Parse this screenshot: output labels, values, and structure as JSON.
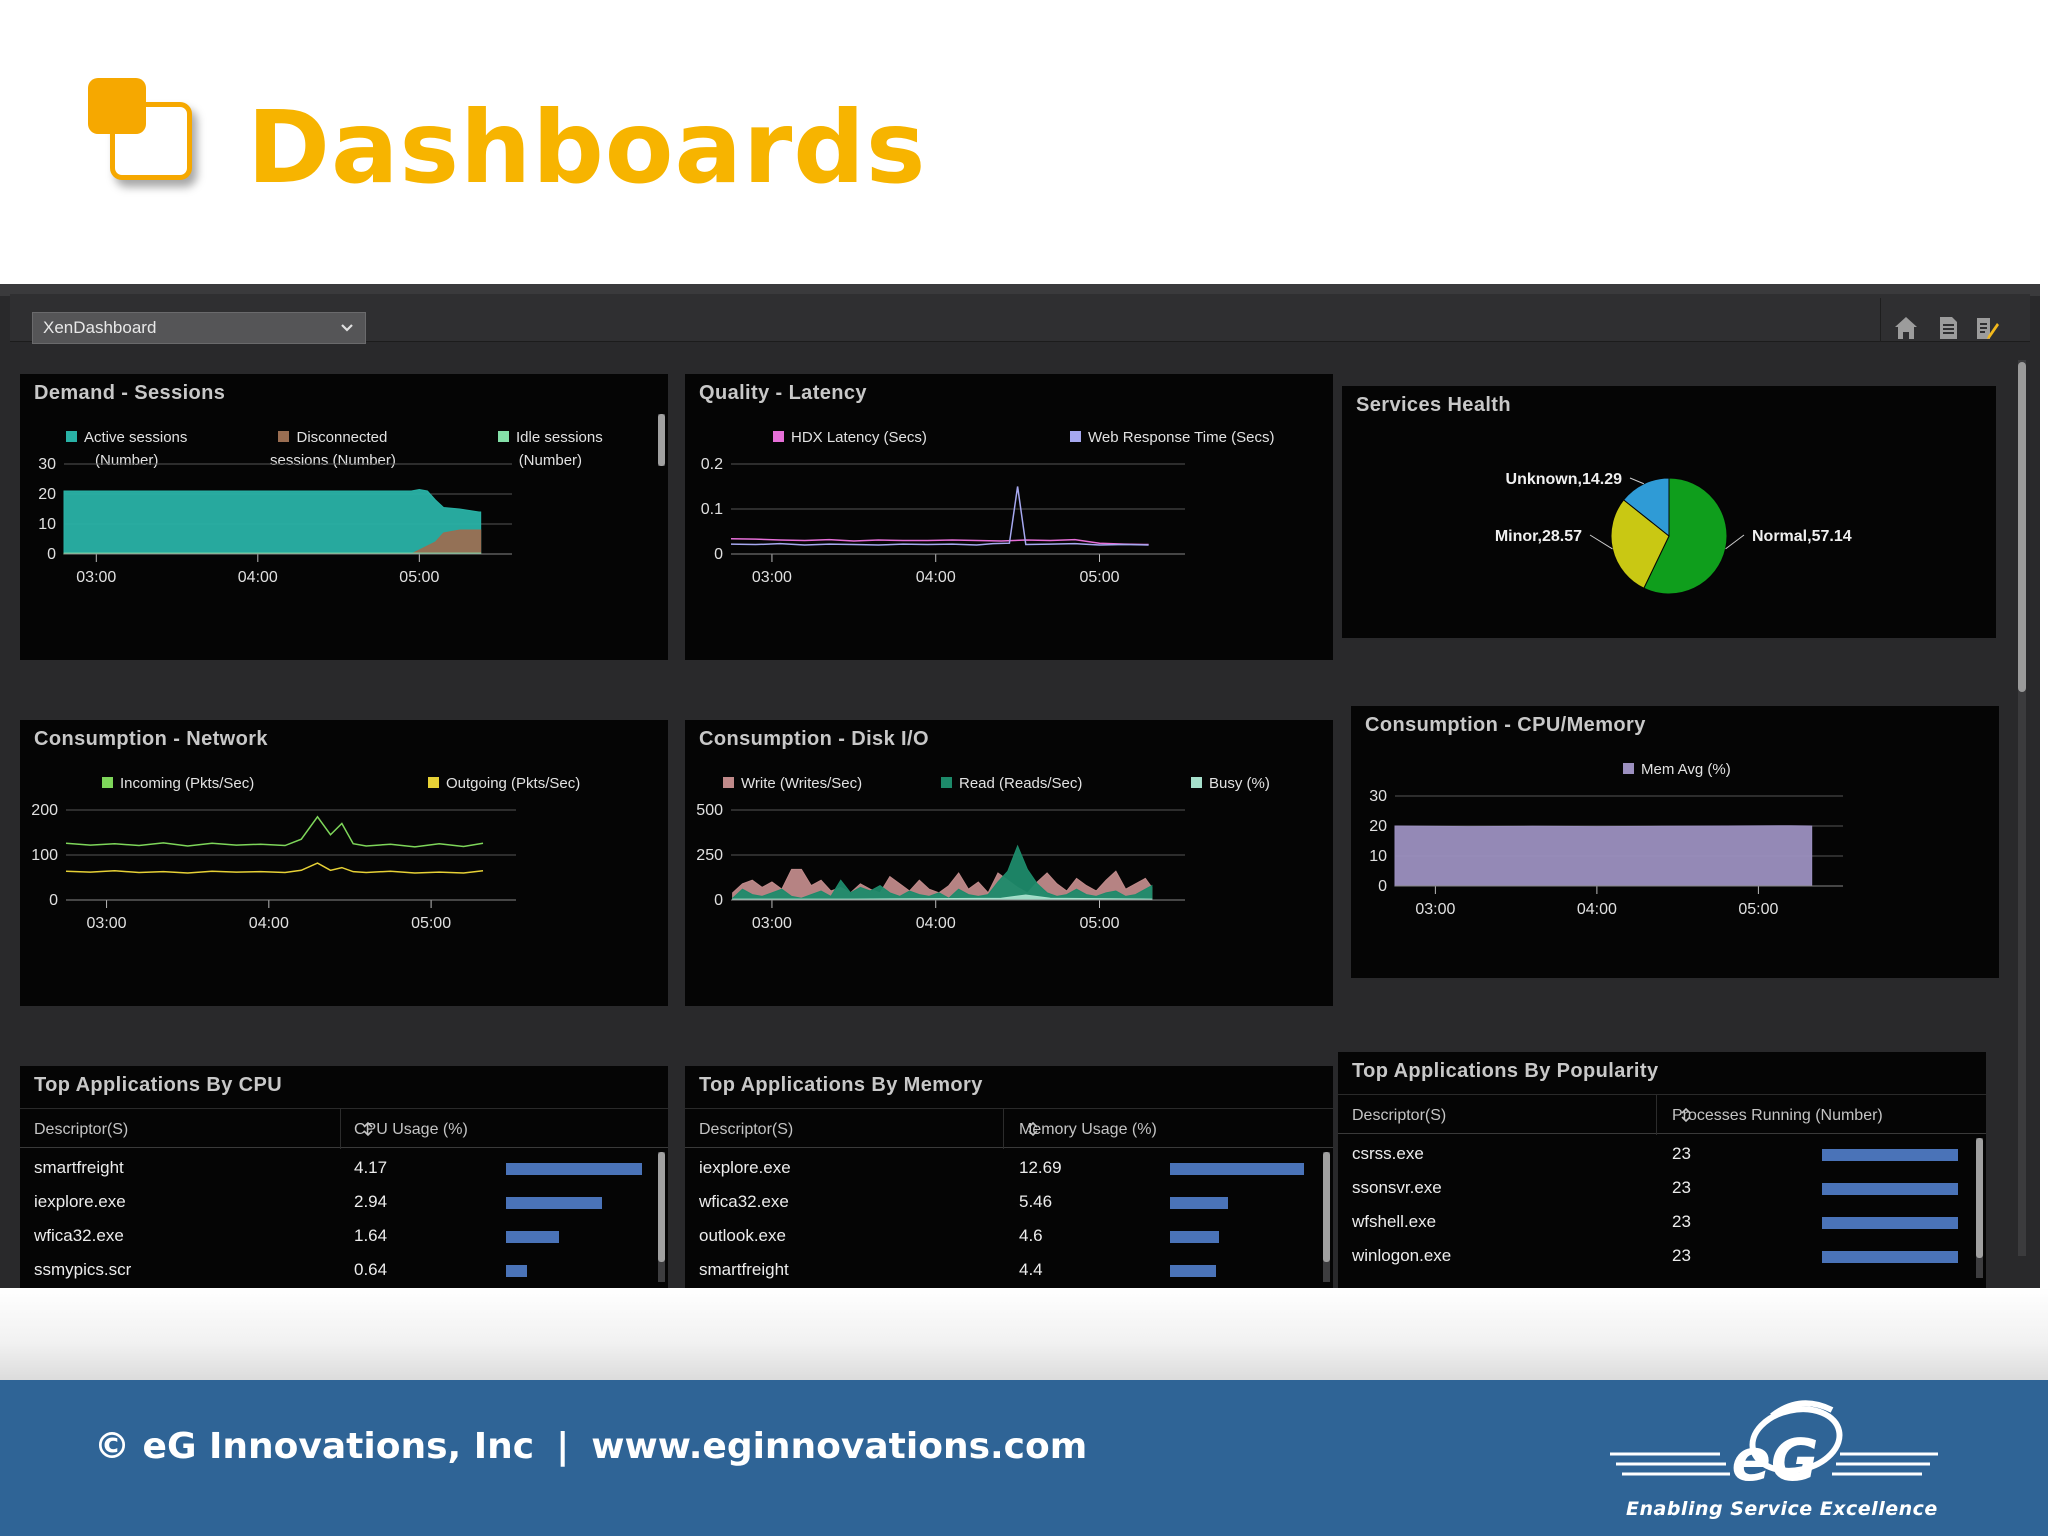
{
  "slide": {
    "title": "Dashboards",
    "footer_copyright": "© eG Innovations, Inc",
    "footer_separator": "|",
    "footer_url": "www.eginnovations.com",
    "logo_tagline": "Enabling Service Excellence",
    "logo_mark": "eG",
    "accent_color": "#f7b400",
    "footer_color": "#2f6496"
  },
  "toolbar": {
    "dashboard_select_value": "XenDashboard",
    "icons": [
      "home-icon",
      "document-icon",
      "edit-report-icon"
    ]
  },
  "panels": {
    "demand_sessions": {
      "title": "Demand - Sessions",
      "legend": [
        {
          "label": "Active sessions",
          "sub": "(Number)",
          "color": "#29b2a6"
        },
        {
          "label": "Disconnected",
          "sub": "sessions (Number)",
          "color": "#9a6e52"
        },
        {
          "label": "Idle sessions",
          "sub": "(Number)",
          "color": "#84e0a8"
        }
      ]
    },
    "quality_latency": {
      "title": "Quality - Latency",
      "legend": [
        {
          "label": "HDX Latency (Secs)",
          "color": "#e66fd8"
        },
        {
          "label": "Web Response Time (Secs)",
          "color": "#a6a8f0"
        }
      ]
    },
    "services_health": {
      "title": "Services Health"
    },
    "consumption_network": {
      "title": "Consumption - Network",
      "legend": [
        {
          "label": "Incoming (Pkts/Sec)",
          "color": "#7ed65a"
        },
        {
          "label": "Outgoing (Pkts/Sec)",
          "color": "#e7d136"
        }
      ]
    },
    "consumption_disk": {
      "title": "Consumption - Disk I/O",
      "legend": [
        {
          "label": "Write (Writes/Sec)",
          "color": "#c08a8a"
        },
        {
          "label": "Read (Reads/Sec)",
          "color": "#1d8a6a"
        },
        {
          "label": "Busy (%)",
          "color": "#a6e0cc"
        }
      ]
    },
    "consumption_cpu_mem": {
      "title": "Consumption - CPU/Memory",
      "legend": [
        {
          "label": "Mem Avg (%)",
          "color": "#9c90c0"
        }
      ]
    },
    "top_cpu": {
      "title": "Top Applications By CPU",
      "col1": "Descriptor(S)",
      "col2": "CPU Usage (%)",
      "rows": [
        {
          "name": "smartfreight",
          "value": "4.17",
          "fraction": 1.0
        },
        {
          "name": "iexplore.exe",
          "value": "2.94",
          "fraction": 0.705
        },
        {
          "name": "wfica32.exe",
          "value": "1.64",
          "fraction": 0.393
        },
        {
          "name": "ssmypics.scr",
          "value": "0.64",
          "fraction": 0.153
        }
      ]
    },
    "top_memory": {
      "title": "Top Applications By Memory",
      "col1": "Descriptor(S)",
      "col2": "Memory Usage (%)",
      "rows": [
        {
          "name": "iexplore.exe",
          "value": "12.69",
          "fraction": 1.0
        },
        {
          "name": "wfica32.exe",
          "value": "5.46",
          "fraction": 0.43
        },
        {
          "name": "outlook.exe",
          "value": "4.6",
          "fraction": 0.362
        },
        {
          "name": "smartfreight",
          "value": "4.4",
          "fraction": 0.347
        }
      ]
    },
    "top_popularity": {
      "title": "Top Applications By Popularity",
      "col1": "Descriptor(S)",
      "col2": "Processes Running (Number)",
      "rows": [
        {
          "name": "csrss.exe",
          "value": "23",
          "fraction": 1.0
        },
        {
          "name": "ssonsvr.exe",
          "value": "23",
          "fraction": 1.0
        },
        {
          "name": "wfshell.exe",
          "value": "23",
          "fraction": 1.0
        },
        {
          "name": "winlogon.exe",
          "value": "23",
          "fraction": 1.0
        }
      ]
    }
  },
  "chart_data": [
    {
      "id": "demand_sessions",
      "type": "area",
      "title": "Demand - Sessions",
      "x_ticks": [
        "03:00",
        "04:00",
        "05:00"
      ],
      "y_ticks": [
        "0",
        "10",
        "20",
        "30"
      ],
      "ylim": [
        0,
        30
      ],
      "x_range_hours": [
        2.75,
        5.4
      ],
      "series": [
        {
          "name": "Active sessions (Number)",
          "color": "#29b2a6",
          "x": [
            2.75,
            4.3,
            4.9,
            4.95,
            5.0,
            5.05,
            5.1,
            5.2,
            5.32,
            5.33
          ],
          "y": [
            21,
            21,
            21,
            21.5,
            21,
            18,
            15.5,
            15,
            14,
            14
          ]
        },
        {
          "name": "Disconnected sessions (Number)",
          "color": "#9a6e52",
          "x": [
            2.75,
            4.3,
            4.9,
            5.05,
            5.1,
            5.2,
            5.32,
            5.33
          ],
          "y": [
            0,
            0,
            0,
            4,
            7,
            8,
            8,
            8
          ]
        },
        {
          "name": "Idle sessions (Number)",
          "color": "#84e0a8",
          "x": [
            2.75,
            5.33
          ],
          "y": [
            0.3,
            0.3
          ]
        }
      ]
    },
    {
      "id": "quality_latency",
      "type": "line",
      "title": "Quality - Latency",
      "x_ticks": [
        "03:00",
        "04:00",
        "05:00"
      ],
      "y_ticks": [
        "0",
        "0.1",
        "0.2"
      ],
      "ylim": [
        0,
        0.2
      ],
      "x_range_hours": [
        2.75,
        5.4
      ],
      "series": [
        {
          "name": "HDX Latency (Secs)",
          "color": "#e66fd8",
          "x": [
            2.75,
            2.9,
            3.05,
            3.2,
            3.35,
            3.5,
            3.65,
            3.8,
            3.95,
            4.1,
            4.25,
            4.4,
            4.55,
            4.7,
            4.85,
            5.0,
            5.15,
            5.3
          ],
          "y": [
            0.034,
            0.033,
            0.031,
            0.03,
            0.032,
            0.029,
            0.031,
            0.03,
            0.03,
            0.031,
            0.03,
            0.029,
            0.031,
            0.03,
            0.032,
            0.024,
            0.022,
            0.021
          ]
        },
        {
          "name": "Web Response Time (Secs)",
          "color": "#a6a8f0",
          "x": [
            2.75,
            2.9,
            3.05,
            3.2,
            3.35,
            3.5,
            3.65,
            3.8,
            3.95,
            4.1,
            4.25,
            4.35,
            4.45,
            4.5,
            4.55,
            4.7,
            4.85,
            5.0,
            5.15,
            5.3
          ],
          "y": [
            0.022,
            0.021,
            0.023,
            0.02,
            0.022,
            0.021,
            0.02,
            0.022,
            0.021,
            0.022,
            0.02,
            0.023,
            0.024,
            0.15,
            0.021,
            0.022,
            0.023,
            0.02,
            0.021,
            0.02
          ]
        }
      ]
    },
    {
      "id": "services_health",
      "type": "pie",
      "title": "Services Health",
      "slices": [
        {
          "label": "Normal,57.14",
          "value": 57.14,
          "color": "#0f9e1c"
        },
        {
          "label": "Minor,28.57",
          "value": 28.57,
          "color": "#c9c813"
        },
        {
          "label": "Unknown,14.29",
          "value": 14.29,
          "color": "#2f9bd6"
        }
      ]
    },
    {
      "id": "consumption_network",
      "type": "line",
      "title": "Consumption - Network",
      "x_ticks": [
        "03:00",
        "04:00",
        "05:00"
      ],
      "y_ticks": [
        "0",
        "100",
        "200"
      ],
      "ylim": [
        0,
        200
      ],
      "x_range_hours": [
        2.75,
        5.4
      ],
      "series": [
        {
          "name": "Incoming (Pkts/Sec)",
          "color": "#7ed65a",
          "x": [
            2.75,
            2.9,
            3.05,
            3.2,
            3.35,
            3.5,
            3.65,
            3.8,
            3.95,
            4.1,
            4.2,
            4.3,
            4.38,
            4.45,
            4.52,
            4.6,
            4.75,
            4.9,
            5.05,
            5.2,
            5.32
          ],
          "y": [
            126,
            122,
            125,
            121,
            127,
            120,
            126,
            122,
            124,
            121,
            135,
            185,
            145,
            170,
            125,
            120,
            124,
            118,
            125,
            119,
            126
          ]
        },
        {
          "name": "Outgoing (Pkts/Sec)",
          "color": "#e7d136",
          "x": [
            2.75,
            2.9,
            3.05,
            3.2,
            3.35,
            3.5,
            3.65,
            3.8,
            3.95,
            4.1,
            4.2,
            4.3,
            4.38,
            4.45,
            4.52,
            4.6,
            4.75,
            4.9,
            5.05,
            5.2,
            5.32
          ],
          "y": [
            64,
            62,
            65,
            61,
            63,
            60,
            64,
            62,
            63,
            61,
            66,
            82,
            66,
            72,
            63,
            61,
            64,
            60,
            62,
            60,
            65
          ]
        }
      ]
    },
    {
      "id": "consumption_disk",
      "type": "area",
      "title": "Consumption - Disk I/O",
      "x_ticks": [
        "03:00",
        "04:00",
        "05:00"
      ],
      "y_ticks": [
        "0",
        "250",
        "500"
      ],
      "ylim": [
        0,
        500
      ],
      "x_range_hours": [
        2.75,
        5.4
      ],
      "series": [
        {
          "name": "Write (Writes/Sec)",
          "color": "#c08a8a",
          "x": [
            2.76,
            2.82,
            2.88,
            2.94,
            3.0,
            3.06,
            3.12,
            3.18,
            3.24,
            3.3,
            3.36,
            3.42,
            3.48,
            3.54,
            3.6,
            3.66,
            3.72,
            3.78,
            3.84,
            3.9,
            3.96,
            4.02,
            4.08,
            4.14,
            4.2,
            4.26,
            4.32,
            4.38,
            4.44,
            4.5,
            4.56,
            4.62,
            4.68,
            4.74,
            4.8,
            4.86,
            4.92,
            4.98,
            5.04,
            5.1,
            5.16,
            5.22,
            5.28,
            5.32
          ],
          "y": [
            40,
            90,
            110,
            70,
            100,
            60,
            170,
            170,
            80,
            110,
            50,
            70,
            40,
            90,
            60,
            40,
            130,
            90,
            50,
            110,
            60,
            40,
            80,
            150,
            60,
            100,
            40,
            150,
            110,
            70,
            40,
            100,
            150,
            90,
            50,
            120,
            80,
            50,
            110,
            160,
            60,
            90,
            120,
            70
          ]
        },
        {
          "name": "Read (Reads/Sec)",
          "color": "#1d8a6a",
          "x": [
            2.76,
            2.82,
            2.88,
            2.94,
            3.0,
            3.06,
            3.12,
            3.18,
            3.24,
            3.3,
            3.36,
            3.42,
            3.48,
            3.54,
            3.6,
            3.66,
            3.72,
            3.78,
            3.84,
            3.9,
            3.96,
            4.02,
            4.08,
            4.14,
            4.2,
            4.26,
            4.32,
            4.38,
            4.44,
            4.5,
            4.56,
            4.62,
            4.68,
            4.74,
            4.8,
            4.86,
            4.92,
            4.98,
            5.04,
            5.1,
            5.16,
            5.22,
            5.28,
            5.32
          ],
          "y": [
            10,
            60,
            30,
            20,
            40,
            60,
            20,
            10,
            30,
            50,
            20,
            110,
            40,
            70,
            50,
            80,
            40,
            20,
            50,
            30,
            20,
            40,
            10,
            60,
            30,
            20,
            30,
            100,
            160,
            300,
            170,
            90,
            40,
            20,
            30,
            60,
            30,
            20,
            40,
            50,
            20,
            30,
            60,
            80
          ]
        },
        {
          "name": "Busy (%)",
          "color": "#a6e0cc",
          "x": [
            2.76,
            3.5,
            4.4,
            4.55,
            4.7,
            5.32
          ],
          "y": [
            5,
            5,
            10,
            28,
            10,
            5
          ]
        }
      ]
    },
    {
      "id": "consumption_cpu_mem",
      "type": "area",
      "title": "Consumption - CPU/Memory",
      "x_ticks": [
        "03:00",
        "04:00",
        "05:00"
      ],
      "y_ticks": [
        "0",
        "10",
        "20",
        "30"
      ],
      "ylim": [
        0,
        30
      ],
      "x_range_hours": [
        2.75,
        5.4
      ],
      "series": [
        {
          "name": "Mem Avg (%)",
          "color": "#9c90c0",
          "x": [
            2.75,
            3.2,
            3.6,
            4.0,
            4.4,
            4.8,
            5.2,
            5.33
          ],
          "y": [
            20,
            19.8,
            19.9,
            19.8,
            19.9,
            20,
            20.1,
            20
          ]
        }
      ]
    }
  ]
}
